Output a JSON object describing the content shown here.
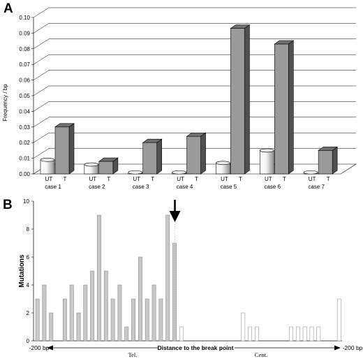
{
  "figure": {
    "panel_a_letter": "A",
    "panel_b_letter": "B"
  },
  "chart_data": [
    {
      "type": "bar",
      "panel": "A",
      "ylabel": "Frequency / bp",
      "xlabel": "",
      "ylim": [
        0,
        0.1
      ],
      "yticks": [
        "0.00",
        "0.01",
        "0.02",
        "0.03",
        "0.04",
        "0.05",
        "0.06",
        "0.07",
        "0.08",
        "0.09",
        "0.10"
      ],
      "categories": [
        "case 1",
        "case 2",
        "case 3",
        "case 4",
        "case 5",
        "case 6",
        "case 7"
      ],
      "bar_labels": {
        "ut": "UT",
        "t": "T"
      },
      "series": [
        {
          "name": "UT",
          "values": [
            0.009,
            0.006,
            0.001,
            0.001,
            0.007,
            0.015,
            0.001
          ]
        },
        {
          "name": "T",
          "values": [
            0.03,
            0.008,
            0.02,
            0.024,
            0.093,
            0.083,
            0.015
          ]
        }
      ],
      "style": "3d-cylinder-bars",
      "colors": {
        "ut": "#f2f2f2",
        "t": "#9a9a9a",
        "t_side": "#505050",
        "t_top": "#707070"
      },
      "grid": true
    },
    {
      "type": "bar",
      "panel": "B",
      "ylabel": "Mutations",
      "xlabel": "Distance to the break point",
      "ylim": [
        0,
        10
      ],
      "yticks": [
        "0",
        "2",
        "4",
        "6",
        "8",
        "10"
      ],
      "x_left_label": "-200 bp",
      "x_right_label": "-200 bp",
      "region_left": "Tel.",
      "region_right": "Cent.",
      "values": [
        3,
        4,
        2,
        0,
        3,
        4,
        2,
        4,
        5,
        9,
        5,
        3,
        4,
        1,
        3,
        6,
        3,
        4,
        3,
        9,
        7,
        1,
        0,
        0,
        0,
        0,
        0,
        0,
        0,
        0,
        2,
        1,
        1,
        0,
        0,
        0,
        0,
        1,
        1,
        1,
        1,
        1,
        0,
        0,
        3
      ],
      "break_index": 20,
      "colors": {
        "tel": "#c8c8c8",
        "cent": "#ffffff"
      }
    }
  ]
}
